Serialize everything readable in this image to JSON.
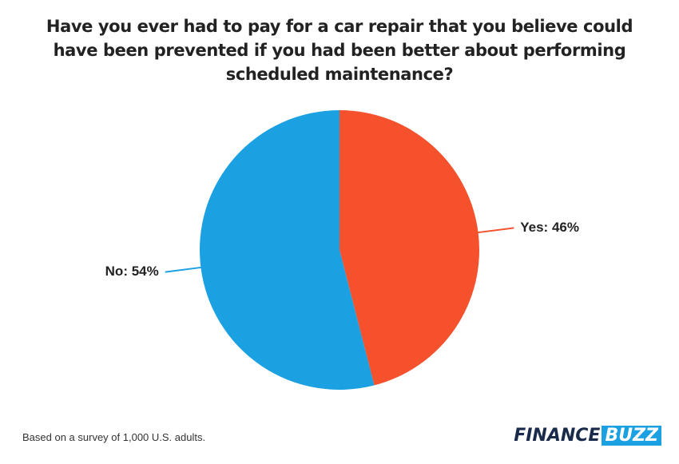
{
  "chart_data": {
    "type": "pie",
    "title": "Have you ever had to pay for a car repair that you believe could have been prevented if you had been better about performing scheduled maintenance?",
    "values": [
      46,
      54
    ],
    "value_labels": [
      "Yes: 46%",
      "No: 54%"
    ],
    "colors": [
      "#f4512c",
      "#1ba0e2"
    ],
    "source": "Based on a survey of 1,000 U.S. adults.",
    "logo": [
      "FINANCE",
      "BUZZ"
    ]
  }
}
